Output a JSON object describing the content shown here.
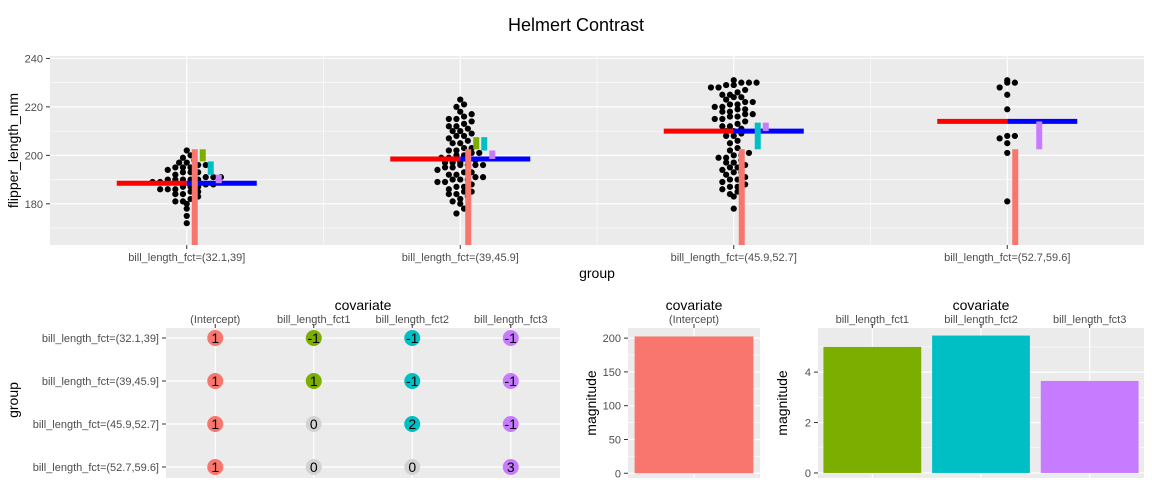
{
  "title": "Helmert Contrast",
  "chart_data": [
    {
      "type": "scatter",
      "xlabel": "group",
      "ylabel": "flipper_length_mm",
      "ylim": [
        163,
        241
      ],
      "yticks": [
        180,
        200,
        220,
        240
      ],
      "categories": [
        "bill_length_fct=(32.1,39]",
        "bill_length_fct=(39,45.9]",
        "bill_length_fct=(45.9,52.7]",
        "bill_length_fct=(52.7,59.6]"
      ],
      "group_means": [
        188.5,
        198.5,
        210,
        214
      ],
      "grand_mean_ref": 0,
      "contrast_segments": [
        {
          "covariate": "(Intercept)",
          "color": "#F8766D",
          "group": 0,
          "from": 163,
          "to": 202.5
        },
        {
          "covariate": "(Intercept)",
          "color": "#F8766D",
          "group": 1,
          "from": 163,
          "to": 202.5
        },
        {
          "covariate": "(Intercept)",
          "color": "#F8766D",
          "group": 2,
          "from": 163,
          "to": 202.5
        },
        {
          "covariate": "(Intercept)",
          "color": "#F8766D",
          "group": 3,
          "from": 163,
          "to": 202.5
        },
        {
          "covariate": "bill_length_fct1",
          "color": "#7CAE00",
          "group": 0,
          "from": 202.5,
          "to": 197.5
        },
        {
          "covariate": "bill_length_fct1",
          "color": "#7CAE00",
          "group": 1,
          "from": 202.5,
          "to": 207.5
        },
        {
          "covariate": "bill_length_fct2",
          "color": "#00BFC4",
          "group": 0,
          "from": 197.5,
          "to": 192
        },
        {
          "covariate": "bill_length_fct2",
          "color": "#00BFC4",
          "group": 1,
          "from": 207.5,
          "to": 202
        },
        {
          "covariate": "bill_length_fct2",
          "color": "#00BFC4",
          "group": 2,
          "from": 202.5,
          "to": 213.5
        },
        {
          "covariate": "bill_length_fct3",
          "color": "#C77CFF",
          "group": 0,
          "from": 192,
          "to": 188.5
        },
        {
          "covariate": "bill_length_fct3",
          "color": "#C77CFF",
          "group": 1,
          "from": 202,
          "to": 198.5
        },
        {
          "covariate": "bill_length_fct3",
          "color": "#C77CFF",
          "group": 2,
          "from": 213.5,
          "to": 210
        },
        {
          "covariate": "bill_length_fct3",
          "color": "#C77CFF",
          "group": 3,
          "from": 202.5,
          "to": 214
        }
      ],
      "points": [
        {
          "group": 0,
          "values": [
            172,
            175,
            178,
            180,
            181,
            181,
            182,
            183,
            184,
            184,
            185,
            185,
            186,
            186,
            186,
            187,
            187,
            187,
            188,
            188,
            189,
            189,
            190,
            190,
            190,
            190,
            190,
            191,
            191,
            191,
            192,
            193,
            193,
            193,
            194,
            195,
            195,
            195,
            196,
            196,
            197,
            197,
            198,
            199,
            200,
            202
          ]
        },
        {
          "group": 1,
          "values": [
            176,
            178,
            180,
            181,
            182,
            183,
            184,
            184,
            185,
            185,
            186,
            187,
            187,
            188,
            189,
            189,
            190,
            190,
            190,
            191,
            191,
            192,
            192,
            193,
            193,
            194,
            195,
            195,
            196,
            196,
            196,
            196,
            197,
            197,
            197,
            198,
            198,
            199,
            199,
            200,
            200,
            201,
            201,
            202,
            202,
            203,
            203,
            205,
            205,
            206,
            207,
            208,
            208,
            209,
            210,
            210,
            211,
            212,
            212,
            213,
            214,
            215,
            215,
            216,
            217,
            218,
            220,
            221,
            223
          ]
        },
        {
          "group": 2,
          "values": [
            178,
            183,
            184,
            185,
            186,
            187,
            187,
            188,
            189,
            190,
            190,
            191,
            192,
            193,
            193,
            194,
            195,
            195,
            196,
            197,
            197,
            198,
            199,
            199,
            200,
            200,
            201,
            202,
            203,
            205,
            206,
            208,
            208,
            209,
            210,
            210,
            211,
            212,
            212,
            213,
            214,
            215,
            215,
            216,
            216,
            217,
            217,
            218,
            218,
            219,
            219,
            220,
            220,
            221,
            221,
            222,
            222,
            223,
            224,
            224,
            225,
            225,
            226,
            227,
            228,
            228,
            229,
            229,
            230,
            230,
            230,
            231
          ]
        },
        {
          "group": 3,
          "values": [
            181,
            201,
            205,
            207,
            208,
            208,
            219,
            225,
            228,
            230,
            230,
            231
          ]
        }
      ]
    },
    {
      "type": "table",
      "facet_label": "covariate",
      "ylabel": "group",
      "columns": [
        "(Intercept)",
        "bill_length_fct1",
        "bill_length_fct2",
        "bill_length_fct3"
      ],
      "column_colors": [
        "#F8766D",
        "#7CAE00",
        "#00BFC4",
        "#C77CFF"
      ],
      "zero_color": "#D3D3D3",
      "rows": [
        "bill_length_fct=(32.1,39]",
        "bill_length_fct=(39,45.9]",
        "bill_length_fct=(45.9,52.7]",
        "bill_length_fct=(52.7,59.6]"
      ],
      "cells": [
        [
          1,
          -1,
          -1,
          -1
        ],
        [
          1,
          1,
          -1,
          -1
        ],
        [
          1,
          0,
          2,
          -1
        ],
        [
          1,
          0,
          0,
          3
        ]
      ]
    },
    {
      "type": "bar",
      "facet_label": "covariate",
      "facet_value": "(Intercept)",
      "ylabel": "magnitude",
      "ylim": [
        -7,
        215
      ],
      "yticks": [
        0,
        50,
        100,
        150,
        200
      ],
      "categories": [
        "(Intercept)"
      ],
      "values": [
        202.5
      ],
      "colors": [
        "#F8766D"
      ]
    },
    {
      "type": "bar",
      "facet_label": "covariate",
      "ylabel": "magnitude",
      "ylim": [
        -0.2,
        5.75
      ],
      "yticks": [
        0,
        2,
        4
      ],
      "categories": [
        "bill_length_fct1",
        "bill_length_fct2",
        "bill_length_fct3"
      ],
      "values": [
        5.0,
        5.45,
        3.65
      ],
      "colors": [
        "#7CAE00",
        "#00BFC4",
        "#C77CFF"
      ]
    }
  ]
}
